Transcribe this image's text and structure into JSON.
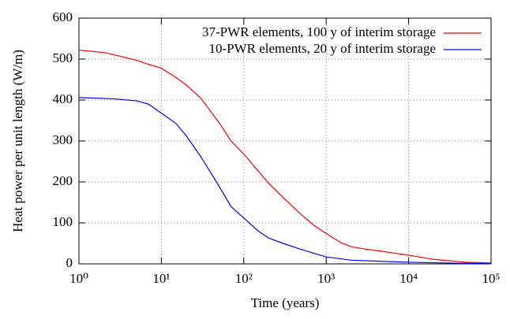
{
  "chart_data": {
    "type": "line",
    "xlabel": "Time (years)",
    "ylabel": "Heat power per unit length (W/m)",
    "xscale": "log",
    "xlim": [
      1,
      100000
    ],
    "ylim": [
      0,
      600
    ],
    "xticks": [
      {
        "value": 1,
        "label": "10⁰"
      },
      {
        "value": 10,
        "label": "10¹"
      },
      {
        "value": 100,
        "label": "10²"
      },
      {
        "value": 1000,
        "label": "10³"
      },
      {
        "value": 10000,
        "label": "10⁴"
      },
      {
        "value": 100000,
        "label": "10⁵"
      }
    ],
    "yticks": [
      0,
      100,
      200,
      300,
      400,
      500,
      600
    ],
    "grid": true,
    "legend": "top-right",
    "series": [
      {
        "name": "37-PWR elements, 100 y of interim storage",
        "color": "#ff0000",
        "x": [
          1,
          2,
          3,
          5,
          7,
          10,
          15,
          20,
          30,
          50,
          70,
          100,
          200,
          300,
          500,
          700,
          1000,
          1500,
          2000,
          3000,
          5000,
          10000,
          20000,
          50000,
          100000
        ],
        "values": [
          522,
          516,
          508,
          497,
          487,
          478,
          455,
          437,
          405,
          345,
          300,
          268,
          197,
          162,
          120,
          95,
          74,
          52,
          42,
          36,
          30,
          21,
          11,
          4,
          2
        ]
      },
      {
        "name": "10-PWR elements, 20 y of interim storage",
        "color": "#0000ff",
        "x": [
          1,
          2,
          3,
          5,
          7,
          10,
          15,
          20,
          30,
          50,
          70,
          100,
          150,
          200,
          300,
          500,
          1000,
          2000,
          5000,
          10000,
          30000,
          100000
        ],
        "values": [
          406,
          404,
          402,
          398,
          390,
          368,
          343,
          313,
          262,
          190,
          140,
          112,
          80,
          63,
          50,
          35,
          17,
          9,
          6,
          4,
          2,
          1
        ]
      }
    ]
  }
}
